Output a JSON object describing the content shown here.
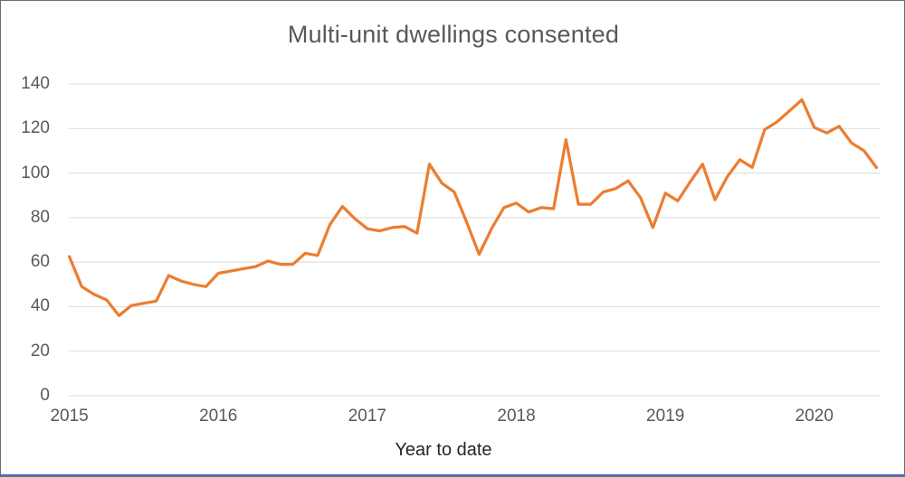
{
  "window": {
    "background": "#FFFFFF",
    "border_color": "#6D6D6D",
    "bottom_edge_color": "#4472C4"
  },
  "chart_data": {
    "type": "line",
    "title": "Multi-unit dwellings consented",
    "xlabel": "Year to date",
    "x_tick_labels": [
      "2015",
      "2016",
      "2017",
      "2018",
      "2019",
      "2020"
    ],
    "y_tick_labels": [
      "0",
      "20",
      "40",
      "60",
      "80",
      "100",
      "120",
      "140"
    ],
    "ylim": [
      0,
      140
    ],
    "grid": "horizontal-only",
    "legend": "none",
    "frequency": "monthly",
    "series": [
      {
        "name": "Multi-unit dwellings consented",
        "start": "2015-01",
        "end": "2020-06",
        "values": [
          62.5,
          49,
          45.5,
          43,
          36,
          40.5,
          41.5,
          42.5,
          54,
          51.5,
          50,
          49,
          55,
          56,
          57,
          58,
          60.5,
          59,
          59,
          64,
          63,
          77,
          85,
          79.5,
          75,
          74,
          75.5,
          76,
          73,
          104,
          95.5,
          91.5,
          78,
          63.5,
          75,
          84.5,
          86.5,
          82.5,
          84.5,
          84,
          115,
          86,
          86,
          91.5,
          93,
          96.5,
          89,
          75.5,
          91,
          87.5,
          96,
          104,
          88,
          98.5,
          106,
          102.5,
          119.5,
          123,
          128,
          133,
          120.5,
          118,
          121,
          113.5,
          110,
          102.5
        ]
      }
    ],
    "colors": {
      "line": "#ED7D31",
      "title": "#595959",
      "tick_labels": "#595959",
      "xlabel": "#262626",
      "gridlines": "#D9D9D9"
    }
  }
}
